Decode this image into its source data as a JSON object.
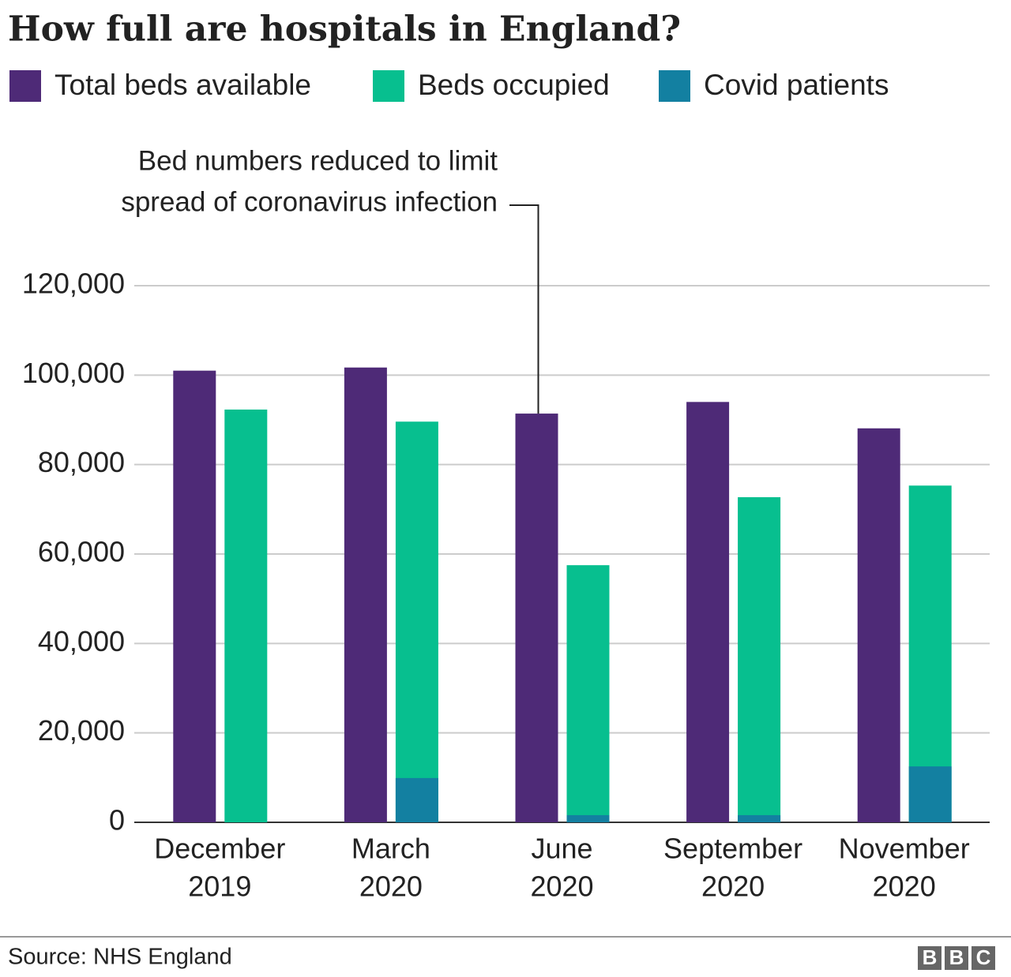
{
  "chart_data": {
    "type": "bar",
    "title": "How full are hospitals in England?",
    "categories": [
      [
        "December",
        "2019"
      ],
      [
        "March",
        "2020"
      ],
      [
        "June",
        "2020"
      ],
      [
        "September",
        "2020"
      ],
      [
        "November",
        "2020"
      ]
    ],
    "series": [
      {
        "name": "Total beds available",
        "color": "#4e2a77",
        "values": [
          101000,
          101700,
          91400,
          94000,
          88100
        ]
      },
      {
        "name": "Beds occupied",
        "color": "#07bf8f",
        "values": [
          92300,
          89600,
          57500,
          72700,
          75300
        ]
      },
      {
        "name": "Covid patients",
        "color": "#1380a1",
        "values": [
          null,
          9900,
          1600,
          1600,
          12500
        ]
      }
    ],
    "ylim": [
      0,
      120000
    ],
    "yticks": [
      0,
      {
        "value": 20000,
        "label": "20,000"
      },
      {
        "value": 40000,
        "label": "40,000"
      },
      {
        "value": 60000,
        "label": "60,000"
      },
      {
        "value": 80000,
        "label": "80,000"
      },
      {
        "value": 100000,
        "label": "100,000"
      },
      {
        "value": 120000,
        "label": "120,000"
      }
    ],
    "grid": true,
    "annotation": [
      "Bed numbers reduced to limit",
      "spread of coronavirus infection"
    ],
    "source": "Source: NHS England",
    "logo": [
      "B",
      "B",
      "C"
    ]
  }
}
